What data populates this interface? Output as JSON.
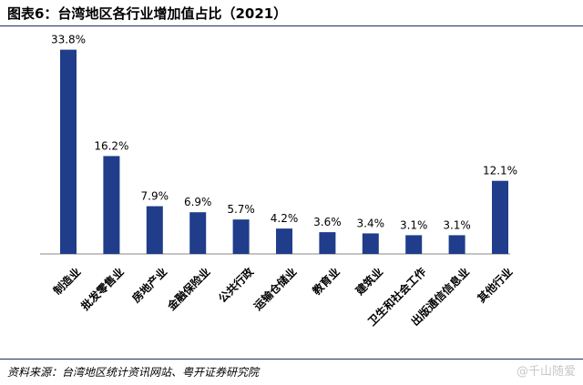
{
  "header": {
    "title": "图表6：台湾地区各行业增加值占比（2021）"
  },
  "footer": {
    "source": "资料来源：台湾地区统计资讯网站、粤开证券研究院",
    "watermark": "@千山随爱"
  },
  "colors": {
    "bar": "#1f3d8a",
    "axis": "#888888",
    "rule": "#1f2f5a"
  },
  "chart_data": {
    "type": "bar",
    "title": "",
    "xlabel": "",
    "ylabel": "",
    "categories": [
      "制造业",
      "批发零售业",
      "房地产业",
      "金融保险业",
      "公共行政",
      "运输仓储业",
      "教育业",
      "建筑业",
      "卫生和社会工作",
      "出版通信信息业",
      "其他行业"
    ],
    "values": [
      33.8,
      16.2,
      7.9,
      6.9,
      5.7,
      4.2,
      3.6,
      3.4,
      3.1,
      3.1,
      12.1
    ],
    "value_labels": [
      "33.8%",
      "16.2%",
      "7.9%",
      "6.9%",
      "5.7%",
      "4.2%",
      "3.6%",
      "3.4%",
      "3.1%",
      "3.1%",
      "12.1%"
    ],
    "ylim": [
      0,
      36
    ],
    "grid": false,
    "legend": "none"
  }
}
